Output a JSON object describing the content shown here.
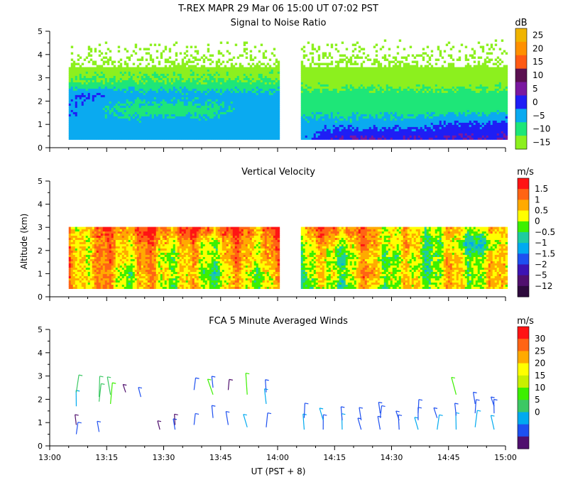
{
  "header": {
    "title": "T-REX   MAPR 29 Mar 06   15:00 UT   07:02   PST"
  },
  "axes": {
    "ylabel": "Altitude (km)",
    "xlabel": "UT  (PST + 8)",
    "y_ticks": [
      "0",
      "1",
      "2",
      "3",
      "4",
      "5"
    ],
    "x_ticks": [
      "13:00",
      "13:15",
      "13:30",
      "13:45",
      "14:00",
      "14:15",
      "14:30",
      "14:45",
      "15:00"
    ]
  },
  "chart_data": [
    {
      "type": "heatmap",
      "title": "Signal to Noise Ratio",
      "xlabel": "UT  (PST + 8)",
      "ylabel": "Altitude (km)",
      "xlim_minutes": [
        0,
        120
      ],
      "ylim": [
        0,
        5
      ],
      "data_gap_minutes": [
        60,
        66
      ],
      "colorbar": {
        "unit": "dB",
        "labels": [
          "25",
          "20",
          "15",
          "10",
          "5",
          "0",
          "−5",
          "−10",
          "−15"
        ],
        "colors": [
          "#f0b400",
          "#ff9000",
          "#ff5a14",
          "#5a1050",
          "#7a18a0",
          "#1e1ef5",
          "#0aaaf0",
          "#1ee678",
          "#8cf01e"
        ]
      },
      "x": [
        0,
        10,
        20,
        30,
        40,
        50,
        60,
        66,
        75,
        85,
        95,
        105,
        115,
        120
      ],
      "y_levels_km": [
        0.4,
        1.0,
        1.6,
        2.2,
        2.8,
        3.4
      ],
      "values_db": [
        [
          -5,
          -5,
          -5,
          -5,
          -5,
          -5,
          -5,
          -5,
          2,
          2,
          2,
          2,
          2,
          2
        ],
        [
          -5,
          -5,
          -5,
          -5,
          -5,
          -5,
          -5,
          -5,
          -5,
          -5,
          -5,
          -2,
          -2,
          0
        ],
        [
          0,
          -5,
          -10,
          -10,
          -10,
          -5,
          -5,
          -10,
          -10,
          -10,
          -10,
          -10,
          -10,
          -10
        ],
        [
          -5,
          -2,
          -5,
          -5,
          -5,
          -5,
          -5,
          -10,
          -10,
          -10,
          -10,
          -10,
          -10,
          -10
        ],
        [
          -12,
          -12,
          -12,
          -12,
          -12,
          -12,
          -12,
          -15,
          -15,
          -15,
          -15,
          -15,
          -15,
          -15
        ],
        [
          -15,
          -15,
          -15,
          -15,
          -15,
          -15,
          -15,
          -15,
          -15,
          -15,
          -15,
          -15,
          -15,
          -15
        ]
      ]
    },
    {
      "type": "heatmap",
      "title": "Vertical Velocity",
      "xlabel": "UT  (PST + 8)",
      "ylabel": "Altitude (km)",
      "xlim_minutes": [
        0,
        120
      ],
      "ylim": [
        0,
        5
      ],
      "data_gap_minutes": [
        60,
        66
      ],
      "colorbar": {
        "unit": "m/s",
        "labels": [
          "1.5",
          "1",
          "0.5",
          "0",
          "−0.5",
          "−1",
          "−1.5",
          "−2",
          "−5",
          "−12"
        ],
        "colors": [
          "#ff1414",
          "#ff6414",
          "#ffaa00",
          "#ffff00",
          "#3cf000",
          "#1ecca0",
          "#00aaf0",
          "#1e50f0",
          "#3c14b4",
          "#50106e",
          "#2d0a3c"
        ]
      },
      "x": [
        0,
        10,
        20,
        30,
        40,
        50,
        60,
        66,
        75,
        85,
        95,
        105,
        115,
        120
      ],
      "y_levels_km": [
        0.4,
        1.0,
        1.6,
        2.2,
        2.8
      ],
      "values_ms": [
        [
          0.5,
          0.5,
          0,
          0,
          0,
          0,
          0,
          -0.5,
          -0.5,
          0,
          0,
          0,
          0,
          0
        ],
        [
          1,
          0.5,
          0,
          0.5,
          -0.5,
          0,
          0,
          -0.5,
          0,
          0.5,
          -0.5,
          0,
          0,
          0
        ],
        [
          1,
          0.5,
          0.5,
          0,
          0,
          0.5,
          0.5,
          0,
          -0.5,
          0,
          -0.5,
          0,
          0,
          0
        ],
        [
          0.5,
          0.5,
          0.5,
          0.5,
          0,
          0.5,
          0.5,
          0,
          0,
          0.5,
          0,
          -0.5,
          -1,
          0
        ],
        [
          0.5,
          0.5,
          1,
          1,
          1,
          1,
          1,
          0.5,
          1,
          0.5,
          0,
          0,
          0,
          0
        ]
      ]
    },
    {
      "type": "scatter",
      "title": "FCA 5 Minute Averaged Winds",
      "xlabel": "UT  (PST + 8)",
      "ylabel": "Altitude (km)",
      "xlim_minutes": [
        0,
        120
      ],
      "ylim": [
        0,
        5
      ],
      "colorbar": {
        "unit": "m/s",
        "labels": [
          "30",
          "25",
          "20",
          "15",
          "10",
          "5",
          "0"
        ],
        "colors": [
          "#ff1414",
          "#ff6414",
          "#ffaa00",
          "#ffff00",
          "#c8f000",
          "#3cf000",
          "#3cc864",
          "#00aaf0",
          "#1e50f0",
          "#50106e"
        ]
      },
      "series": [
        {
          "name": "column 13:07",
          "x_min": 7,
          "points": [
            {
              "alt": 0.9,
              "speed": 1
            },
            {
              "alt": 0.5,
              "speed": 3
            },
            {
              "alt": 1.7,
              "speed": 6
            },
            {
              "alt": 2.3,
              "speed": 9
            }
          ]
        },
        {
          "name": "column 13:13",
          "x_min": 13,
          "points": [
            {
              "alt": 0.6,
              "speed": 2
            },
            {
              "alt": 1.9,
              "speed": 9
            },
            {
              "alt": 2.1,
              "speed": 11
            }
          ]
        },
        {
          "name": "column 13:16",
          "x_min": 16,
          "points": [
            {
              "alt": 1.8,
              "speed": 12
            },
            {
              "alt": 2.2,
              "speed": 10
            }
          ]
        },
        {
          "name": "column 13:20",
          "x_min": 20,
          "points": [
            {
              "alt": 2.3,
              "speed": 1
            }
          ]
        },
        {
          "name": "column 13:24",
          "x_min": 24,
          "points": [
            {
              "alt": 2.1,
              "speed": 2
            }
          ]
        },
        {
          "name": "column 13:29",
          "x_min": 29,
          "points": [
            {
              "alt": 0.7,
              "speed": 1
            }
          ]
        },
        {
          "name": "column 13:33",
          "x_min": 33,
          "points": [
            {
              "alt": 0.7,
              "speed": 2
            },
            {
              "alt": 0.9,
              "speed": 1
            }
          ]
        },
        {
          "name": "column 13:38",
          "x_min": 38,
          "points": [
            {
              "alt": 0.9,
              "speed": 2
            },
            {
              "alt": 2.4,
              "speed": 3
            }
          ]
        },
        {
          "name": "column 13:43",
          "x_min": 43,
          "points": [
            {
              "alt": 1.2,
              "speed": 3
            },
            {
              "alt": 2.2,
              "speed": 12
            },
            {
              "alt": 2.5,
              "speed": 2
            }
          ]
        },
        {
          "name": "column 13:47",
          "x_min": 47,
          "points": [
            {
              "alt": 0.9,
              "speed": 5
            },
            {
              "alt": 2.4,
              "speed": 1
            }
          ]
        },
        {
          "name": "column 13:52",
          "x_min": 52,
          "points": [
            {
              "alt": 0.8,
              "speed": 7
            },
            {
              "alt": 2.2,
              "speed": 12
            }
          ]
        },
        {
          "name": "column 13:57",
          "x_min": 57,
          "points": [
            {
              "alt": 0.8,
              "speed": 5
            },
            {
              "alt": 1.8,
              "speed": 6
            },
            {
              "alt": 2.3,
              "speed": 3
            }
          ]
        },
        {
          "name": "column 14:07",
          "x_min": 67,
          "points": [
            {
              "alt": 0.7,
              "speed": 6
            },
            {
              "alt": 1.2,
              "speed": 5
            }
          ]
        },
        {
          "name": "column 14:12",
          "x_min": 72,
          "points": [
            {
              "alt": 0.7,
              "speed": 5
            },
            {
              "alt": 1.1,
              "speed": 6
            }
          ]
        },
        {
          "name": "column 14:17",
          "x_min": 77,
          "points": [
            {
              "alt": 0.7,
              "speed": 6
            },
            {
              "alt": 1.1,
              "speed": 4
            }
          ]
        },
        {
          "name": "column 14:22",
          "x_min": 82,
          "points": [
            {
              "alt": 0.7,
              "speed": 5
            },
            {
              "alt": 1.1,
              "speed": 4
            }
          ]
        },
        {
          "name": "column 14:27",
          "x_min": 87,
          "points": [
            {
              "alt": 0.7,
              "speed": 5
            },
            {
              "alt": 1.2,
              "speed": 3
            },
            {
              "alt": 1.4,
              "speed": 2
            }
          ]
        },
        {
          "name": "column 14:32",
          "x_min": 92,
          "points": [
            {
              "alt": 0.7,
              "speed": 5
            },
            {
              "alt": 1.1,
              "speed": 3
            }
          ]
        },
        {
          "name": "column 14:37",
          "x_min": 97,
          "points": [
            {
              "alt": 0.7,
              "speed": 6
            },
            {
              "alt": 1.1,
              "speed": 3
            },
            {
              "alt": 1.4,
              "speed": 4
            }
          ]
        },
        {
          "name": "column 14:42",
          "x_min": 102,
          "points": [
            {
              "alt": 0.7,
              "speed": 6
            },
            {
              "alt": 1.2,
              "speed": 4
            }
          ]
        },
        {
          "name": "column 14:47",
          "x_min": 107,
          "points": [
            {
              "alt": 0.7,
              "speed": 7
            },
            {
              "alt": 1.3,
              "speed": 3
            },
            {
              "alt": 2.2,
              "speed": 12
            }
          ]
        },
        {
          "name": "column 14:52",
          "x_min": 112,
          "points": [
            {
              "alt": 0.8,
              "speed": 8
            },
            {
              "alt": 1.4,
              "speed": 4
            },
            {
              "alt": 1.8,
              "speed": 3
            }
          ]
        },
        {
          "name": "column 14:57",
          "x_min": 117,
          "points": [
            {
              "alt": 0.7,
              "speed": 7
            },
            {
              "alt": 1.4,
              "speed": 4
            },
            {
              "alt": 1.7,
              "speed": 3
            }
          ]
        }
      ]
    }
  ]
}
